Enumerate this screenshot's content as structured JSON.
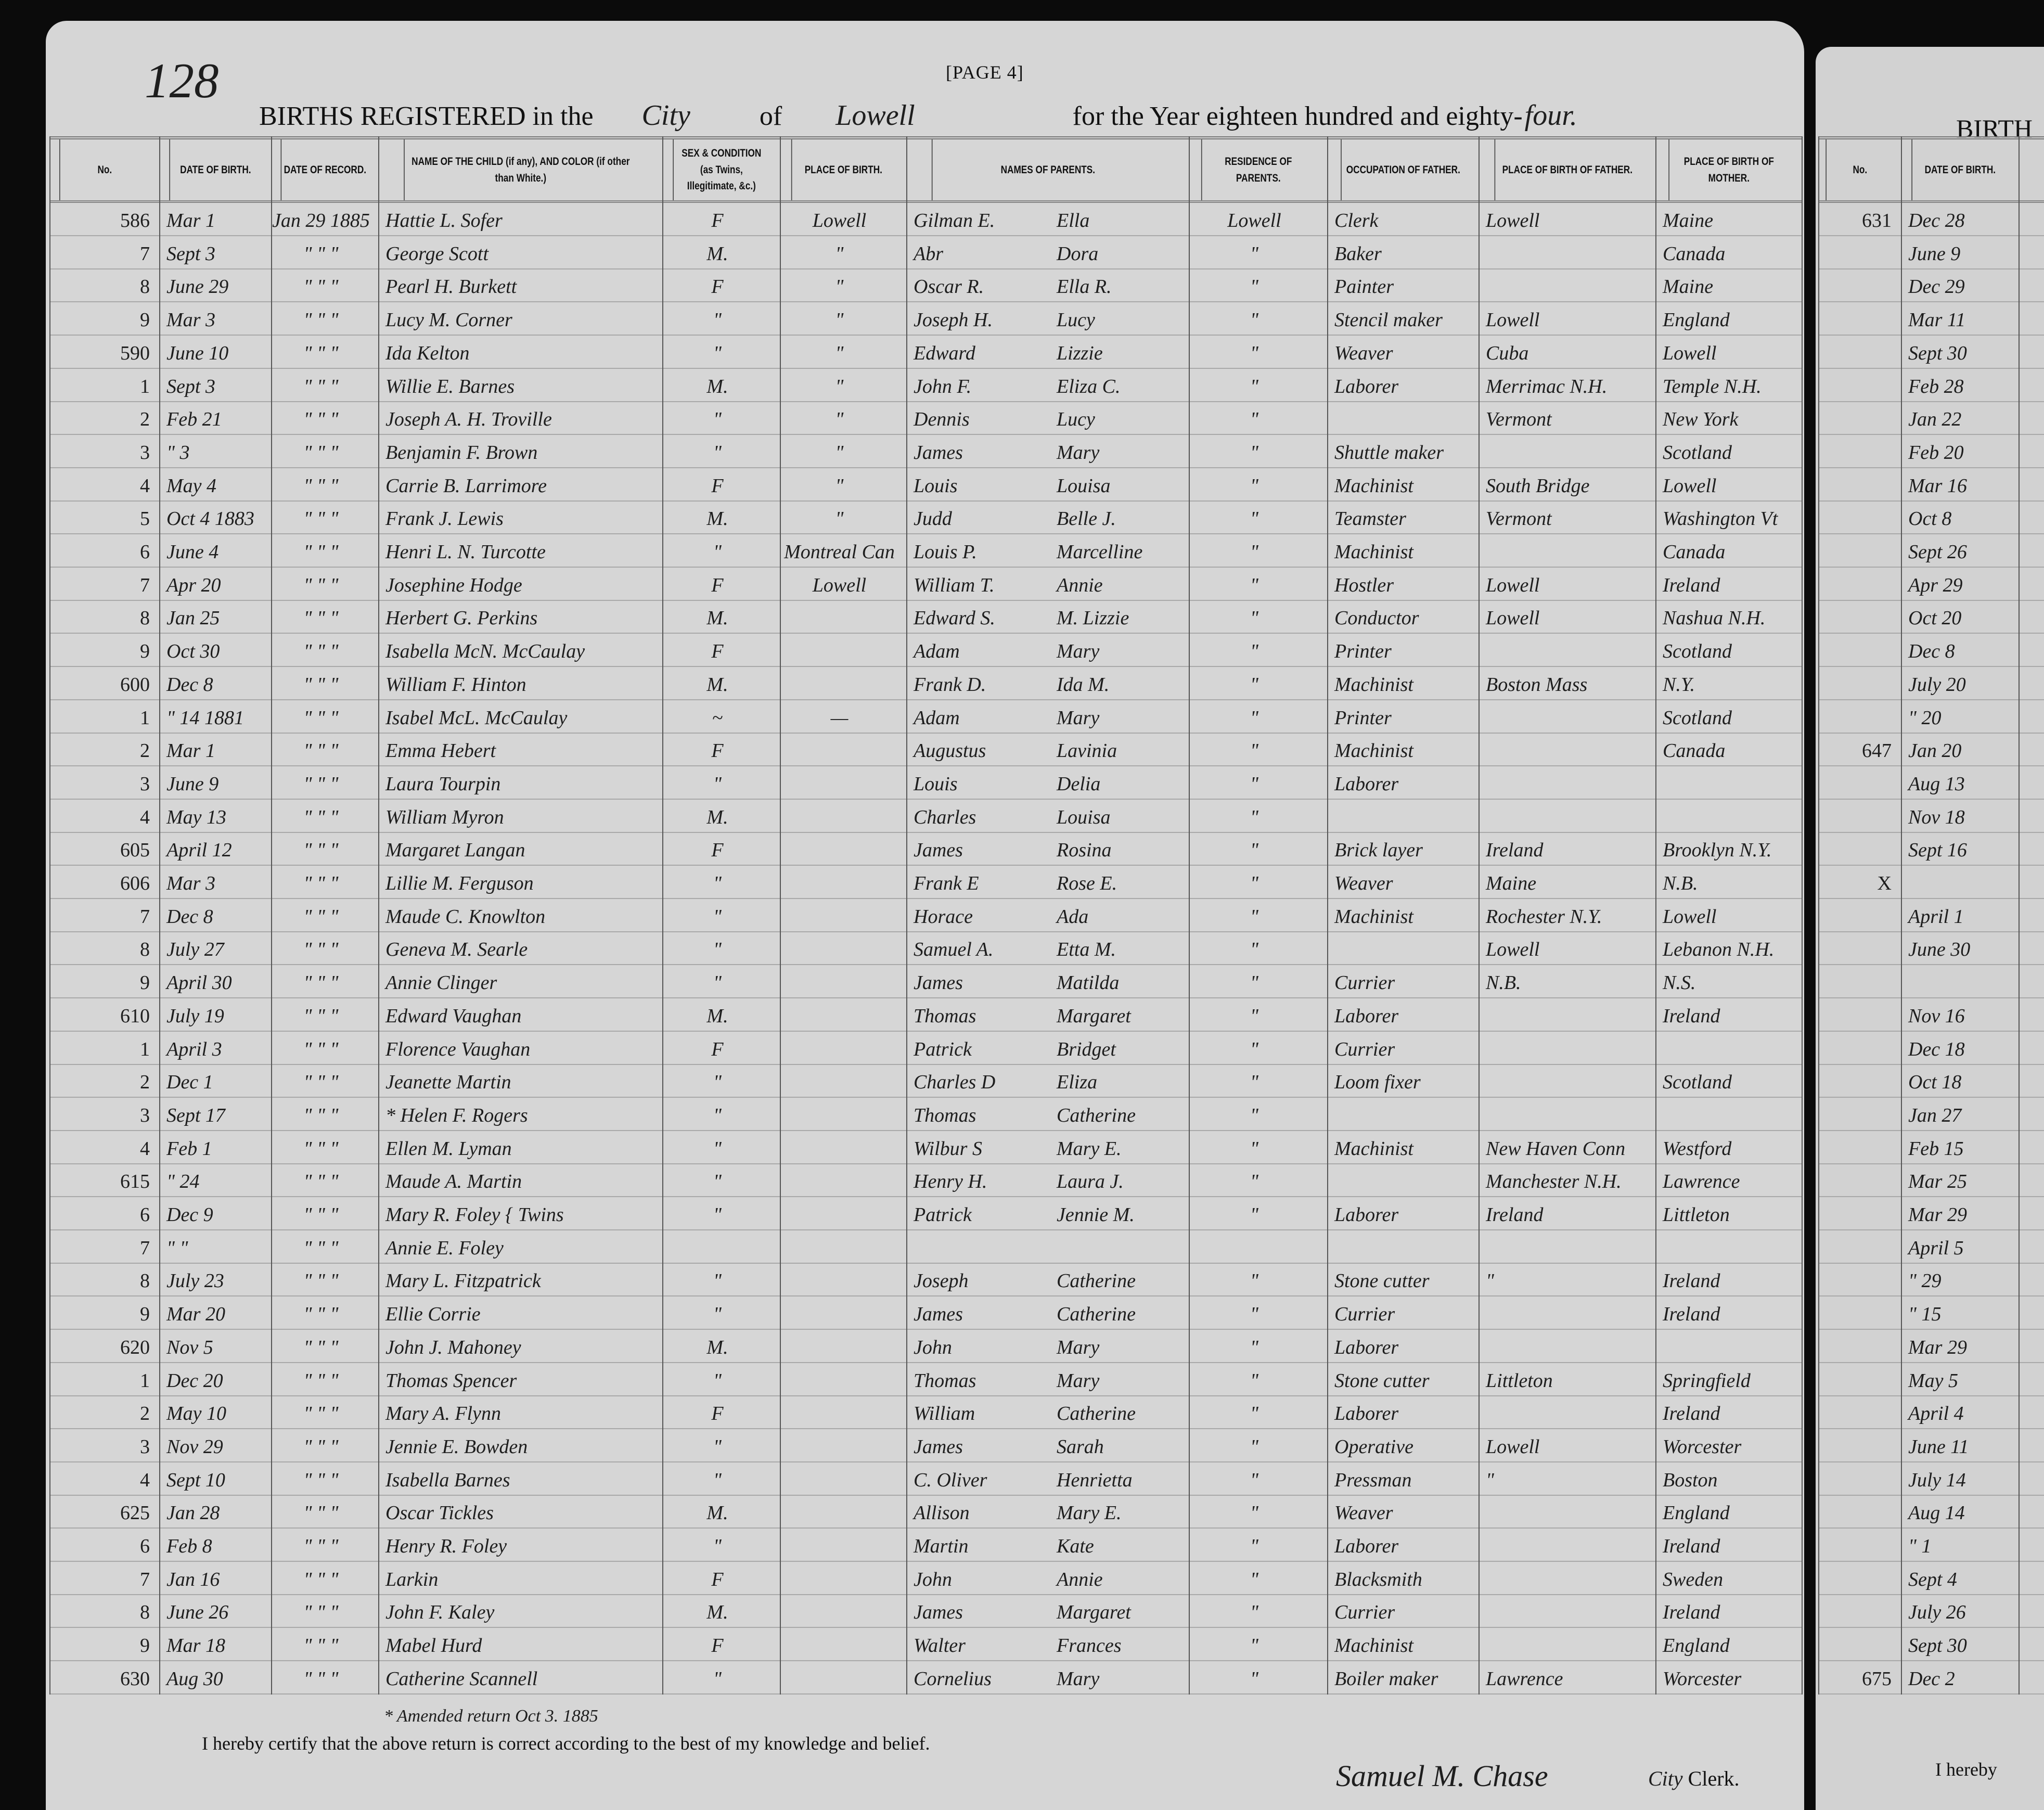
{
  "page_number_handwritten": "128",
  "page_label": "[PAGE 4]",
  "title": {
    "prefix": "BIRTHS REGISTERED in the",
    "municipality_type": "City",
    "of": "of",
    "municipality": "Lowell",
    "suffix": "for the Year eighteen hundred and eighty-",
    "year_word": "four."
  },
  "columns": [
    "No.",
    "DATE OF BIRTH.",
    "DATE OF RECORD.",
    "NAME OF THE CHILD (if any), AND COLOR (if other than White.)",
    "SEX & CONDITION (as Twins, Illegitimate, &c.)",
    "PLACE OF BIRTH.",
    "NAMES OF PARENTS.",
    "RESIDENCE OF PARENTS.",
    "OCCUPATION OF FATHER.",
    "PLACE OF BIRTH OF FATHER.",
    "PLACE OF BIRTH OF MOTHER."
  ],
  "rows": [
    [
      "586",
      "Mar 1",
      "Jan 29 1885",
      "Hattie L. Sofer",
      "F",
      "Lowell",
      "Gilman E.",
      "Ella",
      "Lowell",
      "Clerk",
      "Lowell",
      "Maine"
    ],
    [
      "7",
      "Sept 3",
      "\" \" \"",
      "George Scott",
      "M.",
      "\"",
      "Abr",
      "Dora",
      "\"",
      "Baker",
      "",
      "Canada"
    ],
    [
      "8",
      "June 29",
      "\" \" \"",
      "Pearl H. Burkett",
      "F",
      "\"",
      "Oscar R.",
      "Ella R.",
      "\"",
      "Painter",
      "",
      "Maine"
    ],
    [
      "9",
      "Mar 3",
      "\" \" \"",
      "Lucy M. Corner",
      "\"",
      "\"",
      "Joseph H.",
      "Lucy",
      "\"",
      "Stencil maker",
      "Lowell",
      "England"
    ],
    [
      "590",
      "June 10",
      "\" \" \"",
      "Ida Kelton",
      "\"",
      "\"",
      "Edward",
      "Lizzie",
      "\"",
      "Weaver",
      "Cuba",
      "Lowell"
    ],
    [
      "1",
      "Sept 3",
      "\" \" \"",
      "Willie E. Barnes",
      "M.",
      "\"",
      "John F.",
      "Eliza C.",
      "\"",
      "Laborer",
      "Merrimac N.H.",
      "Temple N.H."
    ],
    [
      "2",
      "Feb 21",
      "\" \" \"",
      "Joseph A. H. Troville",
      "\"",
      "\"",
      "Dennis",
      "Lucy",
      "\"",
      "",
      "Vermont",
      "New York"
    ],
    [
      "3",
      "\" 3",
      "\" \" \"",
      "Benjamin F. Brown",
      "\"",
      "\"",
      "James",
      "Mary",
      "\"",
      "Shuttle maker",
      "",
      "Scotland"
    ],
    [
      "4",
      "May 4",
      "\" \" \"",
      "Carrie B. Larrimore",
      "F",
      "\"",
      "Louis",
      "Louisa",
      "\"",
      "Machinist",
      "South Bridge",
      "Lowell"
    ],
    [
      "5",
      "Oct 4 1883",
      "\" \" \"",
      "Frank J. Lewis",
      "M.",
      "\"",
      "Judd",
      "Belle J.",
      "\"",
      "Teamster",
      "Vermont",
      "Washington Vt"
    ],
    [
      "6",
      "June 4",
      "\" \" \"",
      "Henri L. N. Turcotte",
      "\"",
      "Montreal Can",
      "Louis P.",
      "Marcelline",
      "\"",
      "Machinist",
      "",
      "Canada"
    ],
    [
      "7",
      "Apr 20",
      "\" \" \"",
      "Josephine Hodge",
      "F",
      "Lowell",
      "William T.",
      "Annie",
      "\"",
      "Hostler",
      "Lowell",
      "Ireland"
    ],
    [
      "8",
      "Jan 25",
      "\" \" \"",
      "Herbert G. Perkins",
      "M.",
      "",
      "Edward S.",
      "M. Lizzie",
      "\"",
      "Conductor",
      "Lowell",
      "Nashua N.H."
    ],
    [
      "9",
      "Oct 30",
      "\" \" \"",
      "Isabella McN. McCaulay",
      "F",
      "",
      "Adam",
      "Mary",
      "\"",
      "Printer",
      "",
      "Scotland"
    ],
    [
      "600",
      "Dec 8",
      "\" \" \"",
      "William F. Hinton",
      "M.",
      "",
      "Frank D.",
      "Ida M.",
      "\"",
      "Machinist",
      "Boston Mass",
      "N.Y."
    ],
    [
      "1",
      "\" 14 1881",
      "\" \" \"",
      "Isabel McL. McCaulay",
      "~",
      "—",
      "Adam",
      "Mary",
      "\"",
      "Printer",
      "",
      "Scotland"
    ],
    [
      "2",
      "Mar 1",
      "\" \" \"",
      "Emma Hebert",
      "F",
      "",
      "Augustus",
      "Lavinia",
      "\"",
      "Machinist",
      "",
      "Canada"
    ],
    [
      "3",
      "June 9",
      "\" \" \"",
      "Laura Tourpin",
      "\"",
      "",
      "Louis",
      "Delia",
      "\"",
      "Laborer",
      "",
      ""
    ],
    [
      "4",
      "May 13",
      "\" \" \"",
      "William Myron",
      "M.",
      "",
      "Charles",
      "Louisa",
      "\"",
      "",
      "",
      ""
    ],
    [
      "605",
      "April 12",
      "\" \" \"",
      "Margaret Langan",
      "F",
      "",
      "James",
      "Rosina",
      "\"",
      "Brick layer",
      "Ireland",
      "Brooklyn N.Y."
    ],
    [
      "606",
      "Mar 3",
      "\" \" \"",
      "Lillie M. Ferguson",
      "\"",
      "",
      "Frank E",
      "Rose E.",
      "\"",
      "Weaver",
      "Maine",
      "N.B."
    ],
    [
      "7",
      "Dec 8",
      "\" \" \"",
      "Maude C. Knowlton",
      "\"",
      "",
      "Horace",
      "Ada",
      "\"",
      "Machinist",
      "Rochester N.Y.",
      "Lowell"
    ],
    [
      "8",
      "July 27",
      "\" \" \"",
      "Geneva M. Searle",
      "\"",
      "",
      "Samuel A.",
      "Etta M.",
      "\"",
      "",
      "Lowell",
      "Lebanon N.H."
    ],
    [
      "9",
      "April 30",
      "\" \" \"",
      "Annie Clinger",
      "\"",
      "",
      "James",
      "Matilda",
      "\"",
      "Currier",
      "N.B.",
      "N.S."
    ],
    [
      "610",
      "July 19",
      "\" \" \"",
      "Edward Vaughan",
      "M.",
      "",
      "Thomas",
      "Margaret",
      "\"",
      "Laborer",
      "",
      "Ireland"
    ],
    [
      "1",
      "April 3",
      "\" \" \"",
      "Florence Vaughan",
      "F",
      "",
      "Patrick",
      "Bridget",
      "\"",
      "Currier",
      "",
      ""
    ],
    [
      "2",
      "Dec 1",
      "\" \" \"",
      "Jeanette Martin",
      "\"",
      "",
      "Charles D",
      "Eliza",
      "\"",
      "Loom fixer",
      "",
      "Scotland"
    ],
    [
      "3",
      "Sept 17",
      "\" \" \"",
      "* Helen F. Rogers",
      "\"",
      "",
      "Thomas",
      "Catherine",
      "\"",
      "",
      "",
      ""
    ],
    [
      "4",
      "Feb 1",
      "\" \" \"",
      "Ellen M. Lyman",
      "\"",
      "",
      "Wilbur S",
      "Mary E.",
      "\"",
      "Machinist",
      "New Haven Conn",
      "Westford"
    ],
    [
      "615",
      "\" 24",
      "\" \" \"",
      "Maude A. Martin",
      "\"",
      "",
      "Henry H.",
      "Laura J.",
      "\"",
      "",
      "Manchester N.H.",
      "Lawrence"
    ],
    [
      "6",
      "Dec 9",
      "\" \" \"",
      "Mary R. Foley { Twins",
      "\"",
      "",
      "Patrick",
      "Jennie M.",
      "\"",
      "Laborer",
      "Ireland",
      "Littleton"
    ],
    [
      "7",
      "\" \"",
      "\" \" \"",
      "Annie E. Foley",
      "",
      "",
      "",
      "",
      "",
      "",
      "",
      ""
    ],
    [
      "8",
      "July 23",
      "\" \" \"",
      "Mary L. Fitzpatrick",
      "\"",
      "",
      "Joseph",
      "Catherine",
      "\"",
      "Stone cutter",
      "\"",
      "Ireland"
    ],
    [
      "9",
      "Mar 20",
      "\" \" \"",
      "Ellie Corrie",
      "\"",
      "",
      "James",
      "Catherine",
      "\"",
      "Currier",
      "",
      "Ireland"
    ],
    [
      "620",
      "Nov 5",
      "\" \" \"",
      "John J. Mahoney",
      "M.",
      "",
      "John",
      "Mary",
      "\"",
      "Laborer",
      "",
      ""
    ],
    [
      "1",
      "Dec 20",
      "\" \" \"",
      "Thomas Spencer",
      "\"",
      "",
      "Thomas",
      "Mary",
      "\"",
      "Stone cutter",
      "Littleton",
      "Springfield"
    ],
    [
      "2",
      "May 10",
      "\" \" \"",
      "Mary A. Flynn",
      "F",
      "",
      "William",
      "Catherine",
      "\"",
      "Laborer",
      "",
      "Ireland"
    ],
    [
      "3",
      "Nov 29",
      "\" \" \"",
      "Jennie E. Bowden",
      "\"",
      "",
      "James",
      "Sarah",
      "\"",
      "Operative",
      "Lowell",
      "Worcester"
    ],
    [
      "4",
      "Sept 10",
      "\" \" \"",
      "Isabella Barnes",
      "\"",
      "",
      "C. Oliver",
      "Henrietta",
      "\"",
      "Pressman",
      "\"",
      "Boston"
    ],
    [
      "625",
      "Jan 28",
      "\" \" \"",
      "Oscar Tickles",
      "M.",
      "",
      "Allison",
      "Mary E.",
      "\"",
      "Weaver",
      "",
      "England"
    ],
    [
      "6",
      "Feb 8",
      "\" \" \"",
      "Henry R. Foley",
      "\"",
      "",
      "Martin",
      "Kate",
      "\"",
      "Laborer",
      "",
      "Ireland"
    ],
    [
      "7",
      "Jan 16",
      "\" \" \"",
      "Larkin",
      "F",
      "",
      "John",
      "Annie",
      "\"",
      "Blacksmith",
      "",
      "Sweden"
    ],
    [
      "8",
      "June 26",
      "\" \" \"",
      "John F. Kaley",
      "M.",
      "",
      "James",
      "Margaret",
      "\"",
      "Currier",
      "",
      "Ireland"
    ],
    [
      "9",
      "Mar 18",
      "\" \" \"",
      "Mabel Hurd",
      "F",
      "",
      "Walter",
      "Frances",
      "\"",
      "Machinist",
      "",
      "England"
    ],
    [
      "630",
      "Aug 30",
      "\" \" \"",
      "Catherine Scannell",
      "\"",
      "",
      "Cornelius",
      "Mary",
      "\"",
      "Boiler maker",
      "Lawrence",
      "Worcester"
    ]
  ],
  "footnote": "* Amended return Oct 3. 1885",
  "certification": "I hereby certify that the above return is correct according to the best of my knowledge and belief.",
  "signature": "Samuel M. Chase",
  "signature_title_handwritten": "City",
  "signature_title": "Clerk.",
  "next_page": {
    "title_partial": "BIRTH",
    "columns": [
      "No.",
      "DATE OF BIRTH."
    ],
    "rows": [
      [
        "631",
        "Dec 28"
      ],
      [
        "",
        "June 9"
      ],
      [
        "",
        "Dec 29"
      ],
      [
        "",
        "Mar 11"
      ],
      [
        "",
        "Sept 30"
      ],
      [
        "",
        "Feb 28"
      ],
      [
        "",
        "Jan 22"
      ],
      [
        "",
        "Feb 20"
      ],
      [
        "",
        "Mar 16"
      ],
      [
        "",
        "Oct 8"
      ],
      [
        "",
        "Sept 26"
      ],
      [
        "",
        "Apr 29"
      ],
      [
        "",
        "Oct 20"
      ],
      [
        "",
        "Dec 8"
      ],
      [
        "",
        "July 20"
      ],
      [
        "",
        "\" 20"
      ],
      [
        "647",
        "Jan 20"
      ],
      [
        "",
        "Aug 13"
      ],
      [
        "",
        "Nov 18"
      ],
      [
        "",
        "Sept 16"
      ],
      [
        "X",
        ""
      ],
      [
        "",
        "April 1"
      ],
      [
        "",
        "June 30"
      ],
      [
        "",
        ""
      ],
      [
        "",
        "Nov 16"
      ],
      [
        "",
        "Dec 18"
      ],
      [
        "",
        "Oct 18"
      ],
      [
        "",
        "Jan 27"
      ],
      [
        "",
        "Feb 15"
      ],
      [
        "",
        "Mar 25"
      ],
      [
        "",
        "Mar 29"
      ],
      [
        "",
        "April 5"
      ],
      [
        "",
        "\" 29"
      ],
      [
        "",
        "\" 15"
      ],
      [
        "",
        "Mar 29"
      ],
      [
        "",
        "May 5"
      ],
      [
        "",
        "April 4"
      ],
      [
        "",
        "June 11"
      ],
      [
        "",
        "July 14"
      ],
      [
        "",
        "Aug 14"
      ],
      [
        "",
        "\" 1"
      ],
      [
        "",
        "Sept 4"
      ],
      [
        "",
        "July 26"
      ],
      [
        "",
        "Sept 30"
      ],
      [
        "675",
        "Dec 2"
      ]
    ],
    "certification_partial": "I hereby"
  }
}
